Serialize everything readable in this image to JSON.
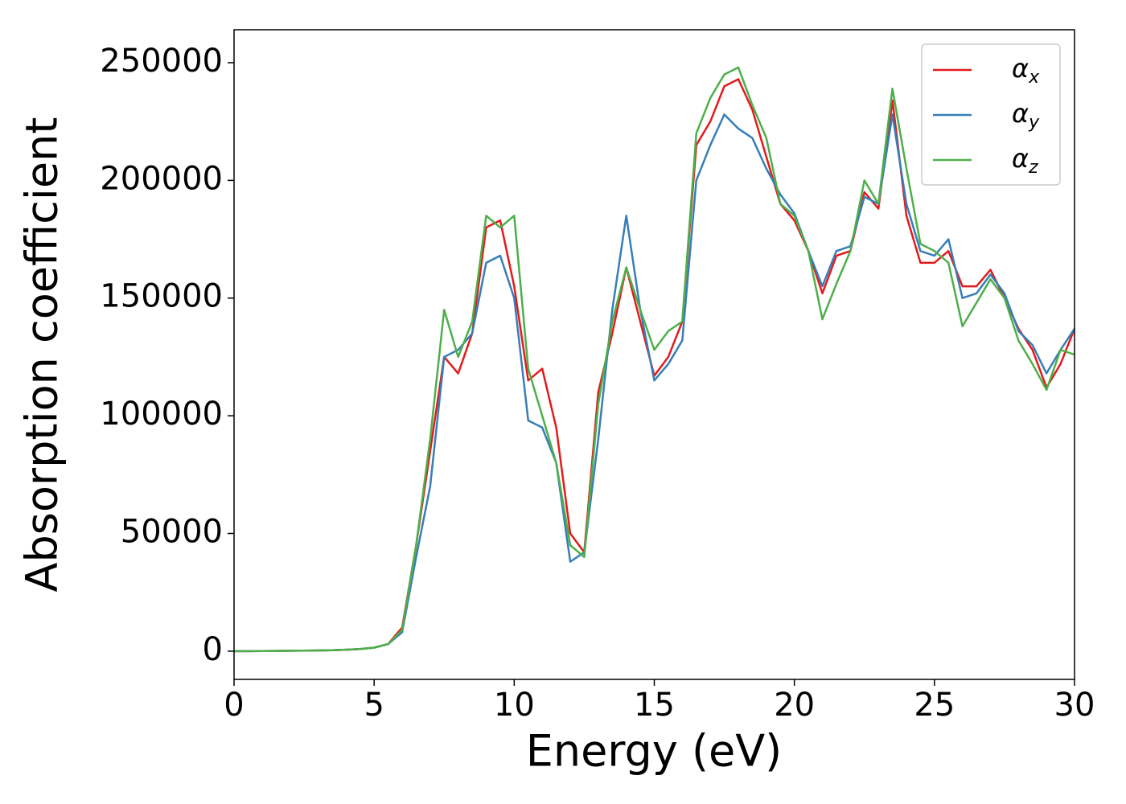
{
  "chart_data": {
    "type": "line",
    "xlabel": "Energy (eV)",
    "ylabel": "Absorption coefficient",
    "x": [
      0,
      0.5,
      1,
      1.5,
      2,
      2.5,
      3,
      3.5,
      4,
      4.5,
      5,
      5.5,
      6,
      6.5,
      7,
      7.5,
      8,
      8.5,
      9,
      9.5,
      10,
      10.5,
      11,
      11.5,
      12,
      12.5,
      13,
      13.5,
      14,
      14.5,
      15,
      15.5,
      16,
      16.5,
      17,
      17.5,
      18,
      18.5,
      19,
      19.5,
      20,
      20.5,
      21,
      21.5,
      22,
      22.5,
      23,
      23.5,
      24,
      24.5,
      25,
      25.5,
      26,
      26.5,
      27,
      27.5,
      28,
      28.5,
      29,
      29.5,
      30
    ],
    "series": [
      {
        "name": "αx",
        "color": "#e41a1c",
        "values": [
          0,
          0,
          50,
          100,
          150,
          200,
          300,
          400,
          600,
          900,
          1500,
          3000,
          10000,
          45000,
          85000,
          125000,
          118000,
          135000,
          180000,
          183000,
          155000,
          115000,
          120000,
          95000,
          50000,
          42000,
          110000,
          135000,
          163000,
          140000,
          117000,
          125000,
          140000,
          215000,
          225000,
          240000,
          243000,
          230000,
          210000,
          190000,
          183000,
          170000,
          152000,
          168000,
          170000,
          195000,
          188000,
          234000,
          185000,
          165000,
          165000,
          170000,
          155000,
          155000,
          162000,
          150000,
          137000,
          128000,
          112000,
          122000,
          137000
        ]
      },
      {
        "name": "αy",
        "color": "#377eb8",
        "values": [
          0,
          0,
          50,
          100,
          150,
          200,
          300,
          400,
          600,
          900,
          1500,
          3000,
          8000,
          40000,
          70000,
          125000,
          128000,
          135000,
          165000,
          168000,
          150000,
          98000,
          95000,
          80000,
          38000,
          42000,
          90000,
          145000,
          185000,
          145000,
          115000,
          122000,
          132000,
          200000,
          215000,
          228000,
          222000,
          218000,
          205000,
          194000,
          186000,
          170000,
          155000,
          170000,
          172000,
          193000,
          190000,
          228000,
          190000,
          170000,
          168000,
          175000,
          150000,
          152000,
          160000,
          152000,
          136000,
          130000,
          118000,
          128000,
          137000
        ]
      },
      {
        "name": "αz",
        "color": "#4daf4a",
        "values": [
          0,
          0,
          50,
          100,
          150,
          200,
          300,
          400,
          600,
          900,
          1500,
          3000,
          9000,
          45000,
          90000,
          145000,
          125000,
          140000,
          185000,
          180000,
          185000,
          120000,
          100000,
          80000,
          45000,
          40000,
          105000,
          140000,
          163000,
          145000,
          128000,
          136000,
          140000,
          220000,
          235000,
          245000,
          248000,
          232000,
          218000,
          190000,
          185000,
          170000,
          141000,
          156000,
          170000,
          200000,
          190000,
          239000,
          205000,
          173000,
          170000,
          165000,
          138000,
          148000,
          158000,
          150000,
          132000,
          122000,
          111000,
          128000,
          126000
        ]
      }
    ],
    "xlim": [
      0,
      30
    ],
    "xticks": [
      0,
      5,
      10,
      15,
      20,
      25,
      30
    ],
    "ylim": [
      -12000,
      264000
    ],
    "yticks": [
      0,
      50000,
      100000,
      150000,
      200000,
      250000
    ],
    "legend": "upper right"
  }
}
